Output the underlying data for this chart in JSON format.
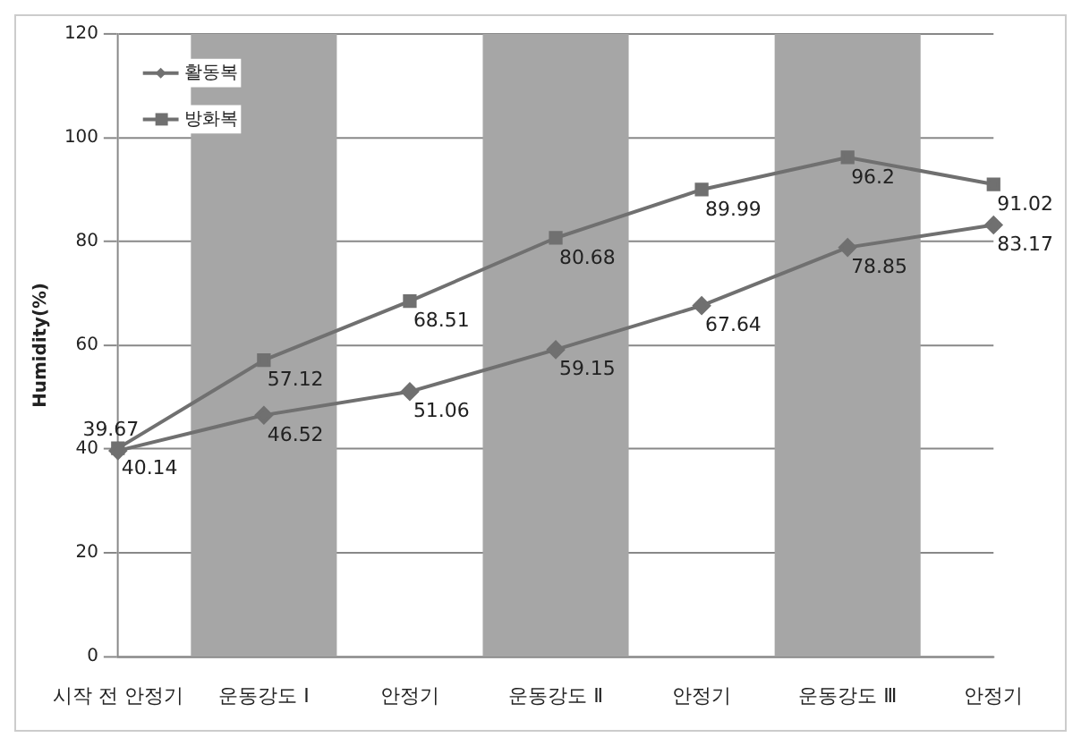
{
  "chart_data": {
    "type": "line",
    "ylabel": "Humidity(%)",
    "categories": [
      "시작 전 안정기",
      "운동강도 Ⅰ",
      "안정기",
      "운동강도 Ⅱ",
      "안정기",
      "운동강도 Ⅲ",
      "안정기"
    ],
    "series": [
      {
        "name": "활동복",
        "color": "#707070",
        "marker": "diamond",
        "values": [
          39.67,
          46.52,
          51.06,
          59.15,
          67.64,
          78.85,
          83.17
        ]
      },
      {
        "name": "방화복",
        "color": "#707070",
        "marker": "square",
        "values": [
          40.14,
          57.12,
          68.51,
          80.68,
          89.99,
          96.2,
          91.02
        ]
      }
    ],
    "bands": [
      {
        "axis": "x",
        "from": "운동강도 Ⅰ",
        "to": "운동강도 Ⅰ",
        "color": "#a6a6a6"
      },
      {
        "axis": "x",
        "from": "운동강도 Ⅱ",
        "to": "운동강도 Ⅱ",
        "color": "#a6a6a6"
      },
      {
        "axis": "x",
        "from": "운동강도 Ⅲ",
        "to": "운동강도 Ⅲ",
        "color": "#a6a6a6"
      }
    ],
    "ylim": [
      0,
      120
    ],
    "yticks": [
      0,
      20,
      40,
      60,
      80,
      100,
      120
    ],
    "grid": "y",
    "legend": "top left",
    "data_labels": true,
    "line_style": "solid"
  }
}
